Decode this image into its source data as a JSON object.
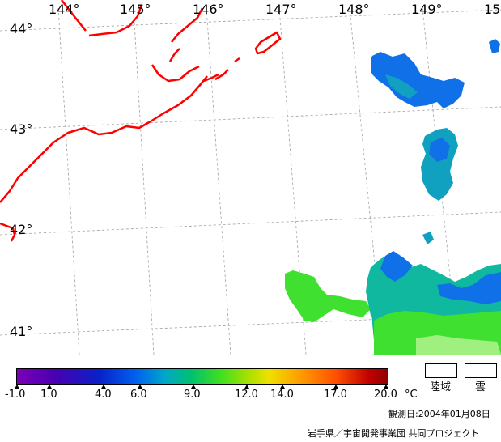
{
  "map": {
    "longitude_labels": [
      "144°",
      "145°",
      "146°",
      "147°",
      "148°",
      "149°",
      "15"
    ],
    "latitude_labels": [
      "44°",
      "43°",
      "42°",
      "41°"
    ],
    "colors": {
      "coastline": "#ff0000",
      "grid": "#a0a0a0",
      "warm": "#40e030",
      "mid": "#10b8a0",
      "cool": "#1070e8",
      "pale": "#a0f080"
    }
  },
  "colorbar": {
    "ticks": [
      "-1.0",
      "1.0",
      "4.0",
      "6.0",
      "9.0",
      "12.0",
      "14.0",
      "17.0",
      "20.0"
    ],
    "unit": "°C"
  },
  "legend": {
    "land_label": "陸域",
    "cloud_label": "雲"
  },
  "footer": {
    "observation_date": "観測日:2004年01月08日",
    "credit": "岩手県／宇宙開発事業団 共同プロジェクト"
  }
}
